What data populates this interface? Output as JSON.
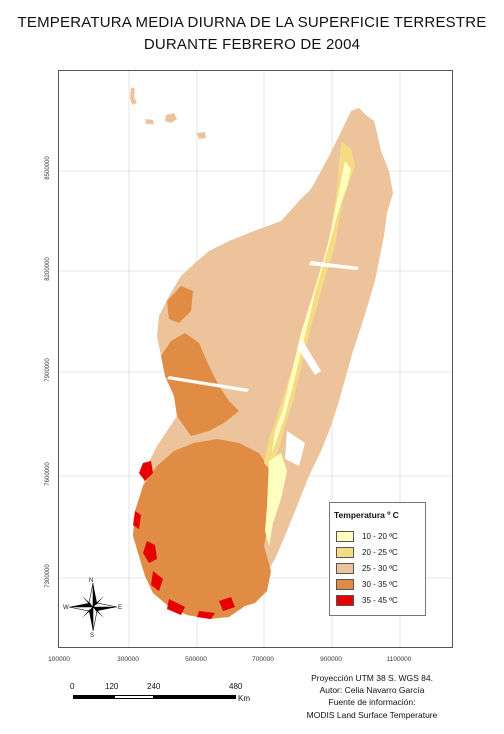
{
  "title": {
    "line1": "TEMPERATURA MEDIA DIURNA DE LA SUPERFICIE TERRESTRE",
    "line2": "DURANTE FEBRERO DE 2004"
  },
  "grid": {
    "y_ticks": [
      "8500000",
      "8200000",
      "7900000",
      "7600000",
      "7300000"
    ],
    "x_ticks": [
      "100000",
      "300000",
      "500000",
      "700000",
      "900000",
      "1100000"
    ]
  },
  "compass": {
    "north": "N",
    "south": "S",
    "east": "E",
    "west": "W"
  },
  "legend": {
    "title": "Temperatura º C",
    "items": [
      {
        "label": "10 - 20 ºC",
        "color": "#ffffc0"
      },
      {
        "label": "20 - 25 ºC",
        "color": "#f5dc84"
      },
      {
        "label": "25 - 30 ºC",
        "color": "#edc39b"
      },
      {
        "label": "30 - 35 ºC",
        "color": "#e08c45"
      },
      {
        "label": "35 - 45 ºC",
        "color": "#e60000"
      }
    ]
  },
  "scale": {
    "labels": [
      "0",
      "120",
      "240",
      "480"
    ],
    "unit": "Km"
  },
  "credits": {
    "projection": "Proyección UTM 38 S. WGS 84.",
    "author": "Autor: Celia Navarro García",
    "source_label": "Fuente de información:",
    "source": "MODIS Land Surface Temperature"
  }
}
